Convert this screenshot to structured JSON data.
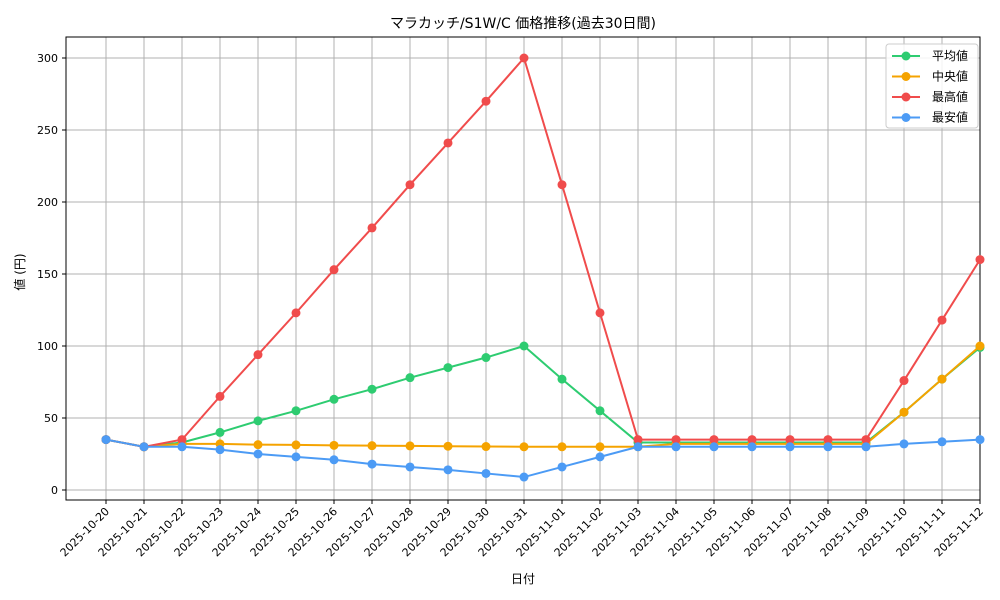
{
  "chart_data": {
    "type": "line",
    "title": "マラカッチ/S1W/C 価格推移(過去30日間)",
    "xlabel": "日付",
    "ylabel": "値 (円)",
    "ylim": [
      0,
      315
    ],
    "yticks": [
      0,
      50,
      100,
      150,
      200,
      250,
      300
    ],
    "grid": true,
    "legend_position": "upper right",
    "x": [
      "2025-10-20",
      "2025-10-21",
      "2025-10-22",
      "2025-10-23",
      "2025-10-24",
      "2025-10-25",
      "2025-10-26",
      "2025-10-27",
      "2025-10-28",
      "2025-10-29",
      "2025-10-30",
      "2025-10-31",
      "2025-11-01",
      "2025-11-02",
      "2025-11-03",
      "2025-11-04",
      "2025-11-05",
      "2025-11-06",
      "2025-11-07",
      "2025-11-08",
      "2025-11-09",
      "2025-11-10",
      "2025-11-11",
      "2025-11-12"
    ],
    "series": [
      {
        "name": "平均値",
        "color": "#2ecc71",
        "values": [
          35,
          30,
          33,
          40,
          48,
          55,
          63,
          70,
          78,
          85,
          92,
          100,
          77,
          55,
          33,
          33,
          33,
          33,
          33,
          33,
          33,
          54,
          77,
          99
        ]
      },
      {
        "name": "中央値",
        "color": "#f5a300",
        "values": [
          35,
          30,
          32,
          32,
          31.5,
          31.3,
          31,
          30.8,
          30.6,
          30.4,
          30.2,
          30,
          30,
          30,
          30,
          32,
          32,
          32,
          32,
          32,
          32,
          54,
          77,
          100
        ]
      },
      {
        "name": "最高値",
        "color": "#f04c4c",
        "values": [
          35,
          30,
          35,
          65,
          94,
          123,
          153,
          182,
          212,
          241,
          270,
          300,
          212,
          123,
          35,
          35,
          35,
          35,
          35,
          35,
          35,
          76,
          118,
          160
        ]
      },
      {
        "name": "最安値",
        "color": "#4c9bf5",
        "values": [
          35,
          30,
          30,
          28,
          25,
          23,
          21,
          18,
          16,
          14,
          11.5,
          9,
          16,
          23,
          30,
          30,
          30,
          30,
          30,
          30,
          30,
          32,
          33.5,
          35
        ]
      }
    ]
  }
}
